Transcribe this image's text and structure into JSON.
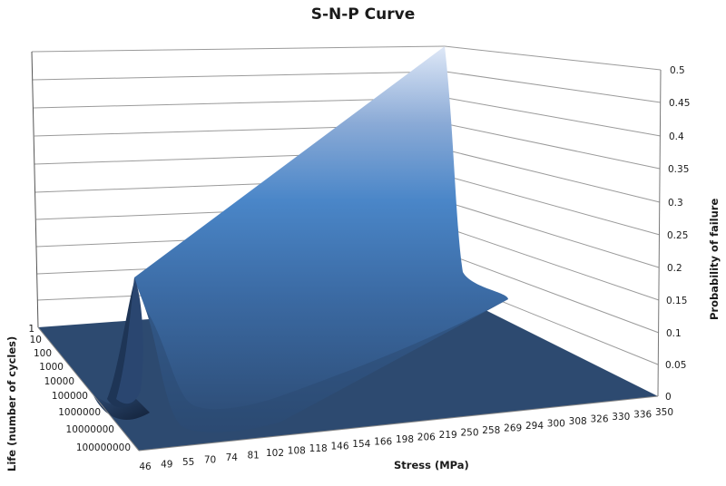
{
  "chart_data": {
    "type": "surface",
    "title": "S-N-P Curve",
    "xlabel": "Stress (MPa)",
    "ylabel": "Life (number of cycles)",
    "zlabel": "Probability of failure",
    "x_categories": [
      "46",
      "49",
      "55",
      "70",
      "74",
      "81",
      "102",
      "108",
      "118",
      "146",
      "154",
      "166",
      "198",
      "206",
      "219",
      "250",
      "258",
      "269",
      "294",
      "300",
      "308",
      "326",
      "330",
      "336",
      "350"
    ],
    "y_categories": [
      "1",
      "10",
      "100",
      "1000",
      "10000",
      "100000",
      "1000000",
      "10000000",
      "100000000"
    ],
    "z_ticks": [
      "0",
      "0.05",
      "0.1",
      "0.15",
      "0.2",
      "0.25",
      "0.3",
      "0.35",
      "0.4",
      "0.45",
      "0.5"
    ],
    "zlim": [
      0,
      0.5
    ],
    "grid": true,
    "description": "Single ridge surface: probability of failure peaks along a curve of life vs stress; ridge height rises from about 0.16 at low stress (46 MPa, ~100000 cycles) to 0.5 at high stress (350 MPa, ~1-10 cycles); elsewhere ~0.",
    "ridge_peak_estimates": [
      {
        "stress": "46",
        "life": "100000",
        "probability": 0.16
      },
      {
        "stress": "118",
        "life": "10000",
        "probability": 0.22
      },
      {
        "stress": "198",
        "life": "1000",
        "probability": 0.3
      },
      {
        "stress": "269",
        "life": "100",
        "probability": 0.38
      },
      {
        "stress": "350",
        "life": "1",
        "probability": 0.5
      }
    ]
  }
}
